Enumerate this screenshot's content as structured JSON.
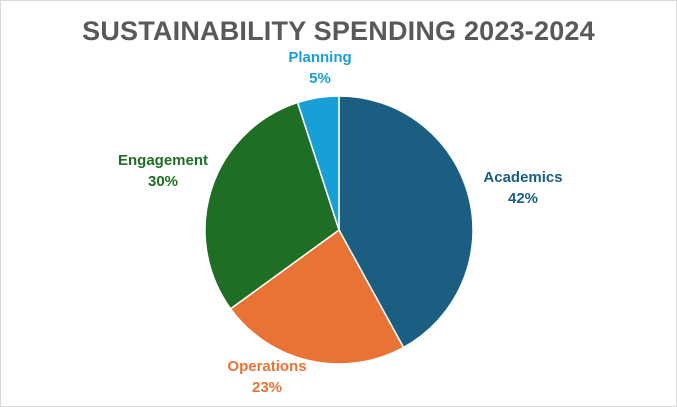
{
  "chart_data": {
    "type": "pie",
    "title": "SUSTAINABILITY SPENDING 2023-2024",
    "slices": [
      {
        "label": "Academics",
        "value": 42,
        "display": "42%",
        "color": "#1a5e82"
      },
      {
        "label": "Operations",
        "value": 23,
        "display": "23%",
        "color": "#e97335"
      },
      {
        "label": "Engagement",
        "value": 30,
        "display": "30%",
        "color": "#1e6e25"
      },
      {
        "label": "Planning",
        "value": 5,
        "display": "5%",
        "color": "#179fd8"
      }
    ],
    "start_angle": "12 o'clock",
    "direction": "clockwise",
    "labels_position": "outside"
  }
}
